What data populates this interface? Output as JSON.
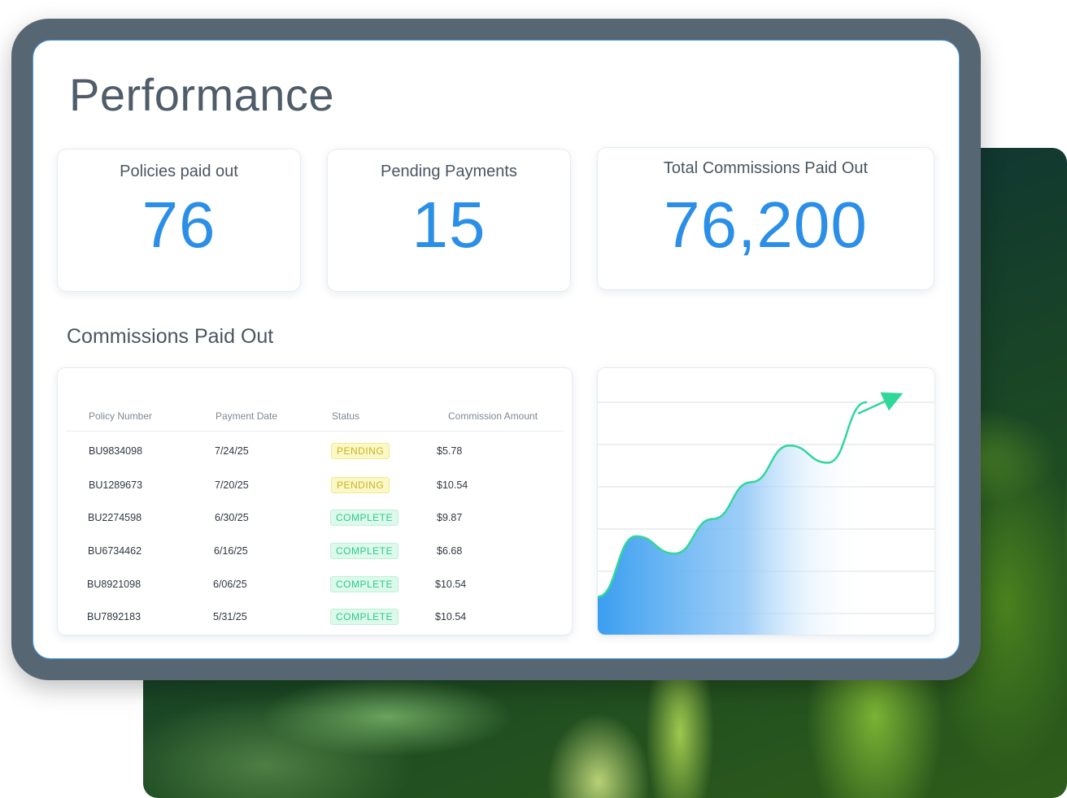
{
  "page": {
    "title": "Performance"
  },
  "kpis": [
    {
      "label": "Policies paid out",
      "value": "76"
    },
    {
      "label": "Pending Payments",
      "value": "15"
    },
    {
      "label": "Total Commissions Paid Out",
      "value": "76,200"
    }
  ],
  "commissions": {
    "section_title": "Commissions Paid Out",
    "columns": [
      "Policy Number",
      "Payment Date",
      "Status",
      "Commission Amount"
    ],
    "rows": [
      {
        "policy": "BU9834098",
        "date": "7/24/25",
        "status": "PENDING",
        "amount": "$5.78"
      },
      {
        "policy": "BU1289673",
        "date": "7/20/25",
        "status": "PENDING",
        "amount": "$10.54"
      },
      {
        "policy": "BU2274598",
        "date": "6/30/25",
        "status": "COMPLETE",
        "amount": "$9.87"
      },
      {
        "policy": "BU6734462",
        "date": "6/16/25",
        "status": "COMPLETE",
        "amount": "$6.68"
      },
      {
        "policy": "BU8921098",
        "date": "6/06/25",
        "status": "COMPLETE",
        "amount": "$10.54"
      },
      {
        "policy": "BU7892183",
        "date": "5/31/25",
        "status": "COMPLETE",
        "amount": "$10.54"
      }
    ]
  },
  "colors": {
    "accent": "#2b8fe8",
    "frame": "#566673",
    "pending_bg": "#fbf8c8",
    "pending_text": "#c8b21e",
    "complete_bg": "#dcf9ec",
    "complete_text": "#2fc98a",
    "trend_line": "#2fd79a"
  },
  "chart_data": {
    "type": "area",
    "title": "",
    "xlabel": "",
    "ylabel": "",
    "grid": true,
    "trend_arrow": true,
    "series": [
      {
        "values": [
          0.1,
          0.38,
          0.3,
          0.46,
          0.63,
          0.8,
          0.72,
          1.0
        ]
      }
    ]
  }
}
